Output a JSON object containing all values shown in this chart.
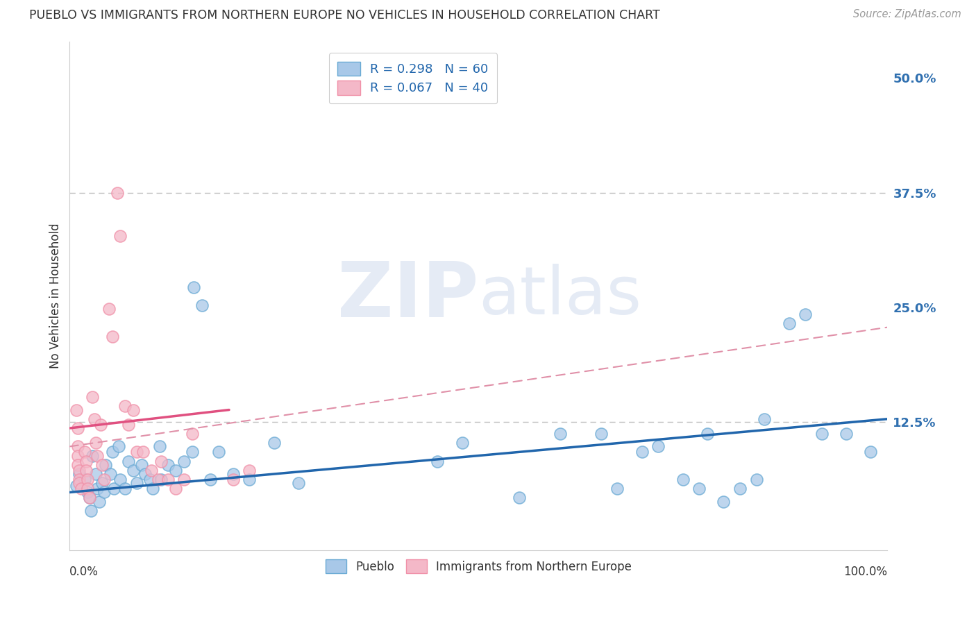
{
  "title": "PUEBLO VS IMMIGRANTS FROM NORTHERN EUROPE NO VEHICLES IN HOUSEHOLD CORRELATION CHART",
  "source": "Source: ZipAtlas.com",
  "ylabel": "No Vehicles in Household",
  "watermark_zip": "ZIP",
  "watermark_atlas": "atlas",
  "xlim": [
    0.0,
    1.0
  ],
  "ylim": [
    -0.015,
    0.54
  ],
  "yticks": [
    0.0,
    0.125,
    0.25,
    0.375,
    0.5
  ],
  "ytick_labels": [
    "",
    "12.5%",
    "25.0%",
    "37.5%",
    "50.0%"
  ],
  "gridline_y": [
    0.125,
    0.375
  ],
  "legend1_label": "R = 0.298   N = 60",
  "legend2_label": "R = 0.067   N = 40",
  "legend_bottom_left": "Pueblo",
  "legend_bottom_right": "Immigrants from Northern Europe",
  "blue_color": "#a8c8e8",
  "pink_color": "#f4b8c8",
  "blue_edge_color": "#6aaad4",
  "pink_edge_color": "#f090a8",
  "blue_line_color": "#2166ac",
  "pink_line_solid_color": "#e05080",
  "pink_line_dash_color": "#e090a8",
  "blue_scatter": [
    [
      0.008,
      0.055
    ],
    [
      0.012,
      0.068
    ],
    [
      0.018,
      0.062
    ],
    [
      0.022,
      0.048
    ],
    [
      0.024,
      0.042
    ],
    [
      0.026,
      0.028
    ],
    [
      0.028,
      0.088
    ],
    [
      0.032,
      0.068
    ],
    [
      0.034,
      0.052
    ],
    [
      0.036,
      0.038
    ],
    [
      0.04,
      0.058
    ],
    [
      0.042,
      0.048
    ],
    [
      0.044,
      0.078
    ],
    [
      0.05,
      0.068
    ],
    [
      0.052,
      0.092
    ],
    [
      0.054,
      0.052
    ],
    [
      0.06,
      0.098
    ],
    [
      0.062,
      0.062
    ],
    [
      0.068,
      0.052
    ],
    [
      0.072,
      0.082
    ],
    [
      0.078,
      0.072
    ],
    [
      0.082,
      0.058
    ],
    [
      0.088,
      0.078
    ],
    [
      0.092,
      0.068
    ],
    [
      0.098,
      0.062
    ],
    [
      0.102,
      0.052
    ],
    [
      0.11,
      0.098
    ],
    [
      0.112,
      0.062
    ],
    [
      0.12,
      0.078
    ],
    [
      0.13,
      0.072
    ],
    [
      0.14,
      0.082
    ],
    [
      0.15,
      0.092
    ],
    [
      0.152,
      0.272
    ],
    [
      0.162,
      0.252
    ],
    [
      0.172,
      0.062
    ],
    [
      0.182,
      0.092
    ],
    [
      0.2,
      0.068
    ],
    [
      0.22,
      0.062
    ],
    [
      0.25,
      0.102
    ],
    [
      0.28,
      0.058
    ],
    [
      0.45,
      0.082
    ],
    [
      0.48,
      0.102
    ],
    [
      0.55,
      0.042
    ],
    [
      0.6,
      0.112
    ],
    [
      0.65,
      0.112
    ],
    [
      0.67,
      0.052
    ],
    [
      0.7,
      0.092
    ],
    [
      0.72,
      0.098
    ],
    [
      0.75,
      0.062
    ],
    [
      0.77,
      0.052
    ],
    [
      0.78,
      0.112
    ],
    [
      0.8,
      0.038
    ],
    [
      0.82,
      0.052
    ],
    [
      0.84,
      0.062
    ],
    [
      0.85,
      0.128
    ],
    [
      0.88,
      0.232
    ],
    [
      0.9,
      0.242
    ],
    [
      0.92,
      0.112
    ],
    [
      0.95,
      0.112
    ],
    [
      0.98,
      0.092
    ]
  ],
  "pink_scatter": [
    [
      0.008,
      0.138
    ],
    [
      0.01,
      0.118
    ],
    [
      0.01,
      0.098
    ],
    [
      0.01,
      0.088
    ],
    [
      0.01,
      0.078
    ],
    [
      0.012,
      0.072
    ],
    [
      0.012,
      0.062
    ],
    [
      0.012,
      0.058
    ],
    [
      0.014,
      0.052
    ],
    [
      0.018,
      0.092
    ],
    [
      0.02,
      0.082
    ],
    [
      0.02,
      0.072
    ],
    [
      0.022,
      0.062
    ],
    [
      0.022,
      0.052
    ],
    [
      0.024,
      0.042
    ],
    [
      0.028,
      0.152
    ],
    [
      0.03,
      0.128
    ],
    [
      0.032,
      0.102
    ],
    [
      0.034,
      0.088
    ],
    [
      0.038,
      0.122
    ],
    [
      0.04,
      0.078
    ],
    [
      0.042,
      0.062
    ],
    [
      0.048,
      0.248
    ],
    [
      0.052,
      0.218
    ],
    [
      0.058,
      0.375
    ],
    [
      0.062,
      0.328
    ],
    [
      0.068,
      0.142
    ],
    [
      0.072,
      0.122
    ],
    [
      0.078,
      0.138
    ],
    [
      0.082,
      0.092
    ],
    [
      0.09,
      0.092
    ],
    [
      0.1,
      0.072
    ],
    [
      0.108,
      0.062
    ],
    [
      0.112,
      0.082
    ],
    [
      0.12,
      0.062
    ],
    [
      0.13,
      0.052
    ],
    [
      0.14,
      0.062
    ],
    [
      0.15,
      0.112
    ],
    [
      0.2,
      0.062
    ],
    [
      0.22,
      0.072
    ]
  ],
  "blue_trendline": [
    [
      0.0,
      0.048
    ],
    [
      1.0,
      0.128
    ]
  ],
  "pink_trendline_solid": [
    [
      0.0,
      0.118
    ],
    [
      0.195,
      0.138
    ]
  ],
  "pink_trendline_dash": [
    [
      0.0,
      0.098
    ],
    [
      1.0,
      0.228
    ]
  ]
}
